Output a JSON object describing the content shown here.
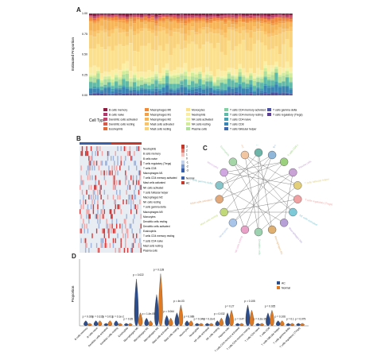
{
  "panels": {
    "A": {
      "letter": "A",
      "ylabel": "Estimated Proportion",
      "yticks": [
        "1.00",
        "0.75",
        "0.50",
        "0.25",
        "0.00"
      ],
      "legend_title": "Cell Type",
      "legend": [
        {
          "label": "B cells memory",
          "color": "#8c1d3f"
        },
        {
          "label": "B cells naive",
          "color": "#b03a6b"
        },
        {
          "label": "Dendritic cells activated",
          "color": "#c2456d"
        },
        {
          "label": "Dendritic cells resting",
          "color": "#d65a4a"
        },
        {
          "label": "Eosinophils",
          "color": "#e06a3a"
        },
        {
          "label": "Macrophages M0",
          "color": "#ef8a3c"
        },
        {
          "label": "Macrophages M1",
          "color": "#f2a04a"
        },
        {
          "label": "Macrophages M2",
          "color": "#f6b559"
        },
        {
          "label": "Mast cells activated",
          "color": "#f8c36a"
        },
        {
          "label": "Mast cells resting",
          "color": "#f9d27d"
        },
        {
          "label": "Monocytes",
          "color": "#fbe08f"
        },
        {
          "label": "Neutrophils",
          "color": "#fbeda3"
        },
        {
          "label": "NK cells activated",
          "color": "#eef5a8"
        },
        {
          "label": "NK cells resting",
          "color": "#d3ec9c"
        },
        {
          "label": "Plasma cells",
          "color": "#b1df9d"
        },
        {
          "label": "T cells CD4 memory activated",
          "color": "#86cfa4"
        },
        {
          "label": "T cells CD4 memory resting",
          "color": "#5fbaa8"
        },
        {
          "label": "T cells CD4 naive",
          "color": "#46a0b0"
        },
        {
          "label": "T cells CD8",
          "color": "#3a84b4"
        },
        {
          "label": "T cells follicular helper",
          "color": "#3e68ab"
        },
        {
          "label": "T cells gamma delta",
          "color": "#4a51a0"
        },
        {
          "label": "T cells regulatory (Tregs)",
          "color": "#5b3f94"
        }
      ]
    },
    "B": {
      "letter": "B",
      "rows": [
        "Neutrophils",
        "B cells memory",
        "B cells naive",
        "T cells regulatory (Tregs)",
        "T cells CD8",
        "Macrophages M1",
        "T cells CD4 memory activated",
        "Mast cells activated",
        "NK cells activated",
        "T cells follicular helper",
        "Macrophages M2",
        "NK cells resting",
        "T cells gamma delta",
        "Macrophages M0",
        "Monocytes",
        "Dendritic cells resting",
        "Dendritic cells activated",
        "Eosinophils",
        "T cells CD4 memory resting",
        "T cells CD4 naive",
        "Mast cells resting",
        "Plasma cells"
      ],
      "legend_ticks": [
        "3",
        "2",
        "1",
        "0",
        "-1",
        "-2",
        "-3"
      ],
      "groups": [
        {
          "label": "Normal",
          "color": "#3a5fa8"
        },
        {
          "label": "AC",
          "color": "#c0392b"
        }
      ]
    },
    "C": {
      "letter": "C",
      "nodes": [
        "T cells CD8",
        "B cells memory",
        "T cells CD4 memory activated",
        "Plasma cells",
        "T cells follicular helper",
        "T cells regulatory (Tregs)",
        "NK cells activated",
        "Macrophages M0",
        "Macrophages M1",
        "Dendritic cells resting",
        "NK cells resting",
        "Neutrophils",
        "Mast cells resting",
        "Mast cells activated",
        "T cells gamma delta",
        "Monocytes",
        "Eosinophils",
        "Dendritic cells activated"
      ]
    },
    "D": {
      "letter": "D",
      "ylabel": "Proportion",
      "legend": [
        {
          "label": "AC",
          "color": "#2c4c8a"
        },
        {
          "label": "Normal",
          "color": "#e07a22"
        }
      ],
      "categories": [
        "B cells memory",
        "B cells naive",
        "Dendritic cells activated",
        "Dendritic cells resting",
        "Eosinophils",
        "Macrophages M0",
        "Macrophages M1",
        "Macrophages M2",
        "Mast cells activated",
        "Mast cells resting",
        "Monocytes",
        "Neutrophils",
        "NK cells activated",
        "NK cells resting",
        "Plasma cells",
        "T cells CD4 memory activated",
        "T cells CD4 memory resting",
        "T cells CD4 naive",
        "T cells CD8",
        "T cells follicular helper",
        "T cells gamma delta",
        "T cells regulatory (Tregs)"
      ],
      "pvalues": [
        "p = 0.028",
        "p = 0.315",
        "p = 0.011",
        "p = 0.1e-2",
        "p = 0.35",
        "p = 0.022",
        "p = 1.4e-05",
        "p = 0.128",
        "p = 0.064",
        "p = 4e-03",
        "p = 0.089",
        "p = 0.044",
        "p = 0.2e-6",
        "p = 0.032",
        "p = 0.27",
        "p = 0.47",
        "p = 0.105",
        "p = 0.2e-15",
        "p = 0.025",
        "p = 0.106",
        "p = 0.1",
        "p = 0.079"
      ]
    }
  },
  "chart_data": [
    {
      "type": "bar",
      "title": "",
      "ylabel": "Estimated Proportion",
      "ylim": [
        0,
        1
      ],
      "note": "stacked 100% bars, one per sample",
      "series": [
        {
          "name": "B cells memory",
          "values": [
            0.02
          ]
        },
        {
          "name": "Macrophages M0",
          "values": [
            0.3
          ]
        },
        {
          "name": "Mast cells resting",
          "values": [
            0.22
          ]
        },
        {
          "name": "T cells CD4 memory resting",
          "values": [
            0.18
          ]
        },
        {
          "name": "Plasma cells",
          "values": [
            0.1
          ]
        },
        {
          "name": "T cells CD8",
          "values": [
            0.08
          ]
        }
      ]
    },
    {
      "type": "scatter",
      "ylabel": "Proportion",
      "series": [
        {
          "name": "AC",
          "values": [
            0.02,
            0.02,
            0.01,
            0.02,
            0.01,
            0.18,
            0.03,
            0.12,
            0.04,
            0.05,
            0.02,
            0.01,
            0.01,
            0.02,
            0.05,
            0.01,
            0.08,
            0.01,
            0.05,
            0.02,
            0.01,
            0.01
          ]
        },
        {
          "name": "Normal",
          "values": [
            0.01,
            0.02,
            0.02,
            0.01,
            0.01,
            0.05,
            0.02,
            0.2,
            0.03,
            0.08,
            0.02,
            0.01,
            0.01,
            0.03,
            0.06,
            0.01,
            0.06,
            0.01,
            0.06,
            0.02,
            0.01,
            0.01
          ]
        }
      ]
    }
  ]
}
